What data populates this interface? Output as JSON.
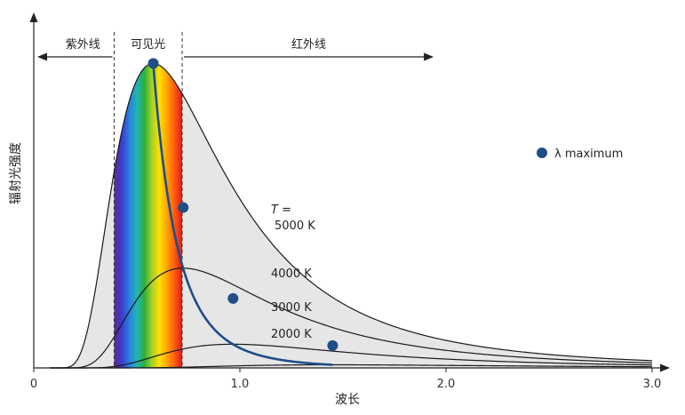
{
  "chart_data": {
    "type": "line",
    "title": "",
    "xlabel": "波长",
    "ylabel": "辐射光强度",
    "xlim": [
      0,
      3.0
    ],
    "ylim": [
      0,
      1.08
    ],
    "x_ticks": [
      "0",
      "1.0",
      "2.0",
      "3.0"
    ],
    "y_ticks": [],
    "grid": false,
    "regions": [
      {
        "label": "紫外线",
        "from": 0,
        "to": 0.39
      },
      {
        "label": "可见光",
        "from": 0.39,
        "to": 0.72
      },
      {
        "label": "红外线",
        "from": 0.72,
        "to": 1.94
      }
    ],
    "temperature_prefix": "T =",
    "series": [
      {
        "name": "5000 K",
        "temperature_k": 5000
      },
      {
        "name": "4000 K",
        "temperature_k": 4000
      },
      {
        "name": "3000 K",
        "temperature_k": 3000
      },
      {
        "name": "2000 K",
        "temperature_k": 2000
      }
    ],
    "lambda_max_points": [
      {
        "x": 0.58,
        "y": 1.0
      },
      {
        "x": 0.725,
        "y": 0.5267
      },
      {
        "x": 0.967,
        "y": 0.2281
      },
      {
        "x": 1.45,
        "y": 0.0735
      }
    ],
    "legend": {
      "label": "λ maximum",
      "position": "right"
    },
    "colors": {
      "curve": "#1a1a1a",
      "fill": "#e6e6e6",
      "marker": "#1f4e89",
      "lambda_line": "#1f4e89",
      "spectrum": [
        "#5b2c8a",
        "#3b3bd0",
        "#2a7fe0",
        "#20b4b4",
        "#2cb03a",
        "#a8d028",
        "#ffe000",
        "#ffa200",
        "#ff5a10",
        "#e01818"
      ]
    }
  }
}
